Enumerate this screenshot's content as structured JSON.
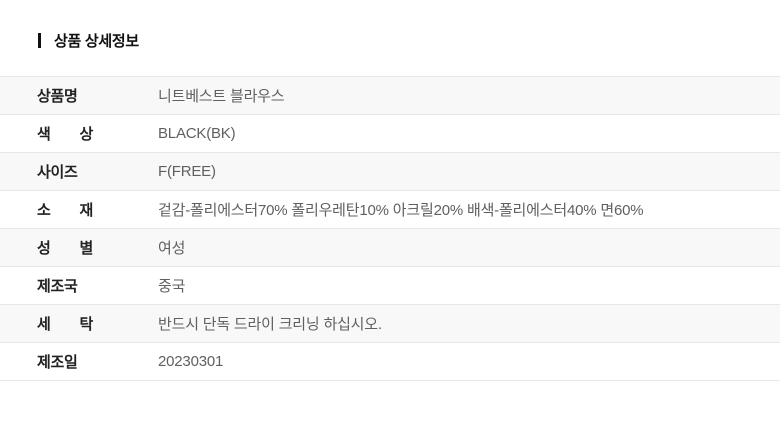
{
  "header": {
    "title": "상품 상세정보"
  },
  "table": {
    "rows": [
      {
        "label": "상품명",
        "value": "니트베스트 블라우스"
      },
      {
        "label": "색 상",
        "value": "BLACK(BK)"
      },
      {
        "label": "사이즈",
        "value": "F(FREE)"
      },
      {
        "label": "소 재",
        "value": "겉감-폴리에스터70% 폴리우레탄10% 아크릴20% 배색-폴리에스터40% 면60%"
      },
      {
        "label": "성 별",
        "value": "여성"
      },
      {
        "label": "제조국",
        "value": "중국"
      },
      {
        "label": "세 탁",
        "value": "반드시 단독 드라이 크리닝 하십시오."
      },
      {
        "label": "제조일",
        "value": "20230301"
      }
    ]
  },
  "colors": {
    "accent_bar": "#111111",
    "title_text": "#111111",
    "row_alt_bg": "#f8f8f8",
    "row_border": "#e7e7e7",
    "label_text": "#222222",
    "value_text": "#606060"
  }
}
